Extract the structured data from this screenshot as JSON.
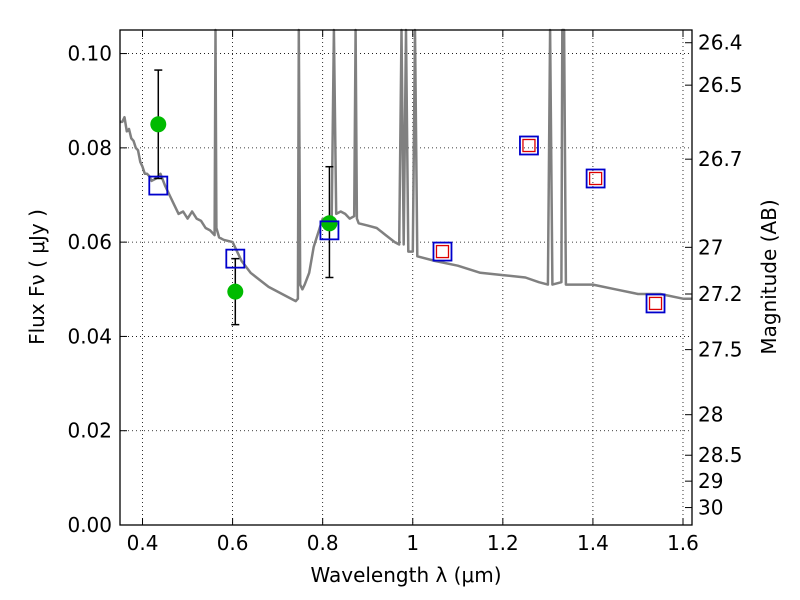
{
  "chart_data": {
    "type": "scatter",
    "xlabel": "Wavelength  λ (μm)",
    "ylabel": "Flux  Fν  ( μJy )",
    "ylabel_right": "Magnitude (AB)",
    "xlim": [
      0.35,
      1.62
    ],
    "ylim": [
      0.0,
      0.105
    ],
    "grid": true,
    "x_ticks": [
      0.4,
      0.6,
      0.8,
      1.0,
      1.2,
      1.4,
      1.6
    ],
    "x_tick_labels": [
      "0.4",
      "0.6",
      "0.8",
      "1",
      "1.2",
      "1.4",
      "1.6"
    ],
    "y_ticks": [
      0.0,
      0.02,
      0.04,
      0.06,
      0.08,
      0.1
    ],
    "y_tick_labels": [
      "0.00",
      "0.02",
      "0.04",
      "0.06",
      "0.08",
      "0.10"
    ],
    "right_ticks": [
      {
        "label": "26.4",
        "flux": 0.1023
      },
      {
        "label": "26.5",
        "flux": 0.0933
      },
      {
        "label": "26.7",
        "flux": 0.0776
      },
      {
        "label": "27",
        "flux": 0.0589
      },
      {
        "label": "27.2",
        "flux": 0.049
      },
      {
        "label": "27.5",
        "flux": 0.0372
      },
      {
        "label": "28",
        "flux": 0.0234
      },
      {
        "label": "28.5",
        "flux": 0.0148
      },
      {
        "label": "29",
        "flux": 0.0093
      },
      {
        "label": "30",
        "flux": 0.0037
      }
    ],
    "series": [
      {
        "kind": "line",
        "color": "#808080",
        "points": [
          [
            0.35,
            0.0855
          ],
          [
            0.355,
            0.0855
          ],
          [
            0.36,
            0.0865
          ],
          [
            0.365,
            0.0835
          ],
          [
            0.37,
            0.084
          ],
          [
            0.375,
            0.082
          ],
          [
            0.38,
            0.0815
          ],
          [
            0.385,
            0.08
          ],
          [
            0.39,
            0.0795
          ],
          [
            0.395,
            0.077
          ],
          [
            0.4,
            0.076
          ],
          [
            0.405,
            0.0745
          ],
          [
            0.41,
            0.0745
          ],
          [
            0.415,
            0.074
          ],
          [
            0.42,
            0.073
          ],
          [
            0.43,
            0.0735
          ],
          [
            0.44,
            0.0745
          ],
          [
            0.45,
            0.072
          ],
          [
            0.46,
            0.07
          ],
          [
            0.47,
            0.068
          ],
          [
            0.48,
            0.066
          ],
          [
            0.49,
            0.0665
          ],
          [
            0.5,
            0.065
          ],
          [
            0.51,
            0.0665
          ],
          [
            0.52,
            0.065
          ],
          [
            0.53,
            0.0645
          ],
          [
            0.54,
            0.063
          ],
          [
            0.55,
            0.0625
          ],
          [
            0.56,
            0.0615
          ],
          [
            0.562,
            0.105
          ],
          [
            0.564,
            0.063
          ],
          [
            0.57,
            0.061
          ],
          [
            0.58,
            0.0605
          ],
          [
            0.6,
            0.06
          ],
          [
            0.62,
            0.056
          ],
          [
            0.64,
            0.0535
          ],
          [
            0.66,
            0.052
          ],
          [
            0.68,
            0.0505
          ],
          [
            0.7,
            0.0495
          ],
          [
            0.72,
            0.0485
          ],
          [
            0.74,
            0.0475
          ],
          [
            0.745,
            0.048
          ],
          [
            0.747,
            0.105
          ],
          [
            0.75,
            0.051
          ],
          [
            0.755,
            0.05
          ],
          [
            0.76,
            0.051
          ],
          [
            0.77,
            0.0535
          ],
          [
            0.78,
            0.059
          ],
          [
            0.79,
            0.062
          ],
          [
            0.8,
            0.065
          ],
          [
            0.81,
            0.0645
          ],
          [
            0.82,
            0.065
          ],
          [
            0.825,
            0.105
          ],
          [
            0.83,
            0.066
          ],
          [
            0.84,
            0.0665
          ],
          [
            0.85,
            0.066
          ],
          [
            0.86,
            0.065
          ],
          [
            0.87,
            0.0655
          ],
          [
            0.873,
            0.105
          ],
          [
            0.876,
            0.065
          ],
          [
            0.88,
            0.064
          ],
          [
            0.9,
            0.0635
          ],
          [
            0.92,
            0.063
          ],
          [
            0.94,
            0.0615
          ],
          [
            0.96,
            0.06
          ],
          [
            0.97,
            0.0595
          ],
          [
            0.975,
            0.105
          ],
          [
            0.98,
            0.0595
          ],
          [
            0.985,
            0.105
          ],
          [
            0.99,
            0.058
          ],
          [
            1.0,
            0.058
          ],
          [
            1.005,
            0.105
          ],
          [
            1.01,
            0.057
          ],
          [
            1.05,
            0.056
          ],
          [
            1.1,
            0.055
          ],
          [
            1.15,
            0.0535
          ],
          [
            1.2,
            0.053
          ],
          [
            1.25,
            0.0525
          ],
          [
            1.28,
            0.0515
          ],
          [
            1.3,
            0.051
          ],
          [
            1.305,
            0.105
          ],
          [
            1.31,
            0.051
          ],
          [
            1.33,
            0.0515
          ],
          [
            1.332,
            0.105
          ],
          [
            1.336,
            0.105
          ],
          [
            1.34,
            0.051
          ],
          [
            1.38,
            0.051
          ],
          [
            1.4,
            0.051
          ],
          [
            1.45,
            0.05
          ],
          [
            1.5,
            0.049
          ],
          [
            1.55,
            0.049
          ],
          [
            1.6,
            0.048
          ],
          [
            1.62,
            0.048
          ]
        ]
      },
      {
        "kind": "errorbar",
        "marker": "circle",
        "color": "#00bb00",
        "points": [
          {
            "x": 0.435,
            "y": 0.085,
            "ylo": 0.0735,
            "yhi": 0.0965
          },
          {
            "x": 0.606,
            "y": 0.0495,
            "ylo": 0.0425,
            "yhi": 0.0565
          },
          {
            "x": 0.815,
            "y": 0.064,
            "ylo": 0.0525,
            "yhi": 0.076
          }
        ]
      },
      {
        "kind": "scatter",
        "marker": "square",
        "color": "#0000cc",
        "points": [
          [
            0.435,
            0.072
          ],
          [
            0.606,
            0.0565
          ],
          [
            0.815,
            0.0625
          ],
          [
            1.066,
            0.058
          ],
          [
            1.258,
            0.0805
          ],
          [
            1.406,
            0.0735
          ],
          [
            1.539,
            0.047
          ]
        ]
      },
      {
        "kind": "scatter",
        "marker": "square-small",
        "color": "#dd0000",
        "points": [
          [
            1.066,
            0.058
          ],
          [
            1.258,
            0.0805
          ],
          [
            1.406,
            0.0735
          ],
          [
            1.539,
            0.047
          ]
        ]
      }
    ]
  }
}
